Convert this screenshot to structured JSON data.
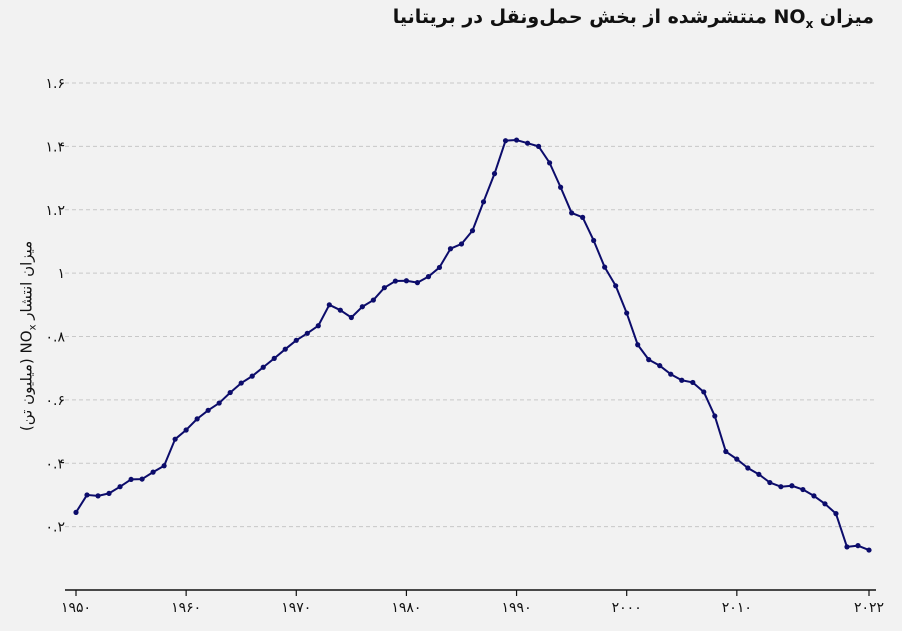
{
  "title": {
    "pre": "میزان ",
    "chem": "NO",
    "sub": "x",
    "post": " منتشرشده از بخش حمل‌ونقل در بریتانیا"
  },
  "ylabel": {
    "pre": "میزان انتشار ",
    "chem": "NO",
    "sub": "x",
    "post": " (میلیون تن)"
  },
  "colors": {
    "line": "#0c0c6b",
    "grid": "#c8c8c8",
    "axis": "#111111",
    "background": "#f2f2f2"
  },
  "chart_data": {
    "type": "line",
    "ylim": [
      0,
      1.6
    ],
    "xlim": [
      1950,
      2022
    ],
    "grid": "horizontal dashed",
    "y_ticks": [
      {
        "value": 0.2,
        "label": "۰.۲"
      },
      {
        "value": 0.4,
        "label": "۰.۴"
      },
      {
        "value": 0.6,
        "label": "۰.۶"
      },
      {
        "value": 0.8,
        "label": "۰.۸"
      },
      {
        "value": 1.0,
        "label": "۱"
      },
      {
        "value": 1.2,
        "label": "۱.۲"
      },
      {
        "value": 1.4,
        "label": "۱.۴"
      },
      {
        "value": 1.6,
        "label": "۱.۶"
      }
    ],
    "x_ticks": [
      {
        "value": 1950,
        "label": "۱۹۵۰"
      },
      {
        "value": 1960,
        "label": "۱۹۶۰"
      },
      {
        "value": 1970,
        "label": "۱۹۷۰"
      },
      {
        "value": 1980,
        "label": "۱۹۸۰"
      },
      {
        "value": 1990,
        "label": "۱۹۹۰"
      },
      {
        "value": 2000,
        "label": "۲۰۰۰"
      },
      {
        "value": 2010,
        "label": "۲۰۱۰"
      },
      {
        "value": 2022,
        "label": "۲۰۲۲"
      }
    ],
    "x": [
      1950,
      1951,
      1952,
      1953,
      1954,
      1955,
      1956,
      1957,
      1958,
      1959,
      1960,
      1961,
      1962,
      1963,
      1964,
      1965,
      1966,
      1967,
      1968,
      1969,
      1970,
      1971,
      1972,
      1973,
      1974,
      1975,
      1976,
      1977,
      1978,
      1979,
      1980,
      1981,
      1982,
      1983,
      1984,
      1985,
      1986,
      1987,
      1988,
      1989,
      1990,
      1991,
      1992,
      1993,
      1994,
      1995,
      1996,
      1997,
      1998,
      1999,
      2000,
      2001,
      2002,
      2003,
      2004,
      2005,
      2006,
      2007,
      2008,
      2009,
      2010,
      2011,
      2012,
      2013,
      2014,
      2015,
      2016,
      2017,
      2018,
      2019,
      2020,
      2021,
      2022
    ],
    "y": [
      0.245,
      0.3,
      0.297,
      0.305,
      0.326,
      0.349,
      0.35,
      0.372,
      0.392,
      0.476,
      0.505,
      0.54,
      0.567,
      0.59,
      0.623,
      0.653,
      0.675,
      0.703,
      0.731,
      0.76,
      0.788,
      0.81,
      0.834,
      0.9,
      0.883,
      0.86,
      0.894,
      0.915,
      0.954,
      0.975,
      0.976,
      0.97,
      0.989,
      1.018,
      1.077,
      1.092,
      1.134,
      1.225,
      1.314,
      1.418,
      1.42,
      1.41,
      1.4,
      1.348,
      1.271,
      1.19,
      1.176,
      1.103,
      1.019,
      0.96,
      0.874,
      0.774,
      0.727,
      0.708,
      0.681,
      0.662,
      0.655,
      0.625,
      0.549,
      0.437,
      0.413,
      0.385,
      0.365,
      0.339,
      0.326,
      0.329,
      0.317,
      0.297,
      0.272,
      0.241,
      0.136,
      0.14,
      0.126
    ]
  }
}
